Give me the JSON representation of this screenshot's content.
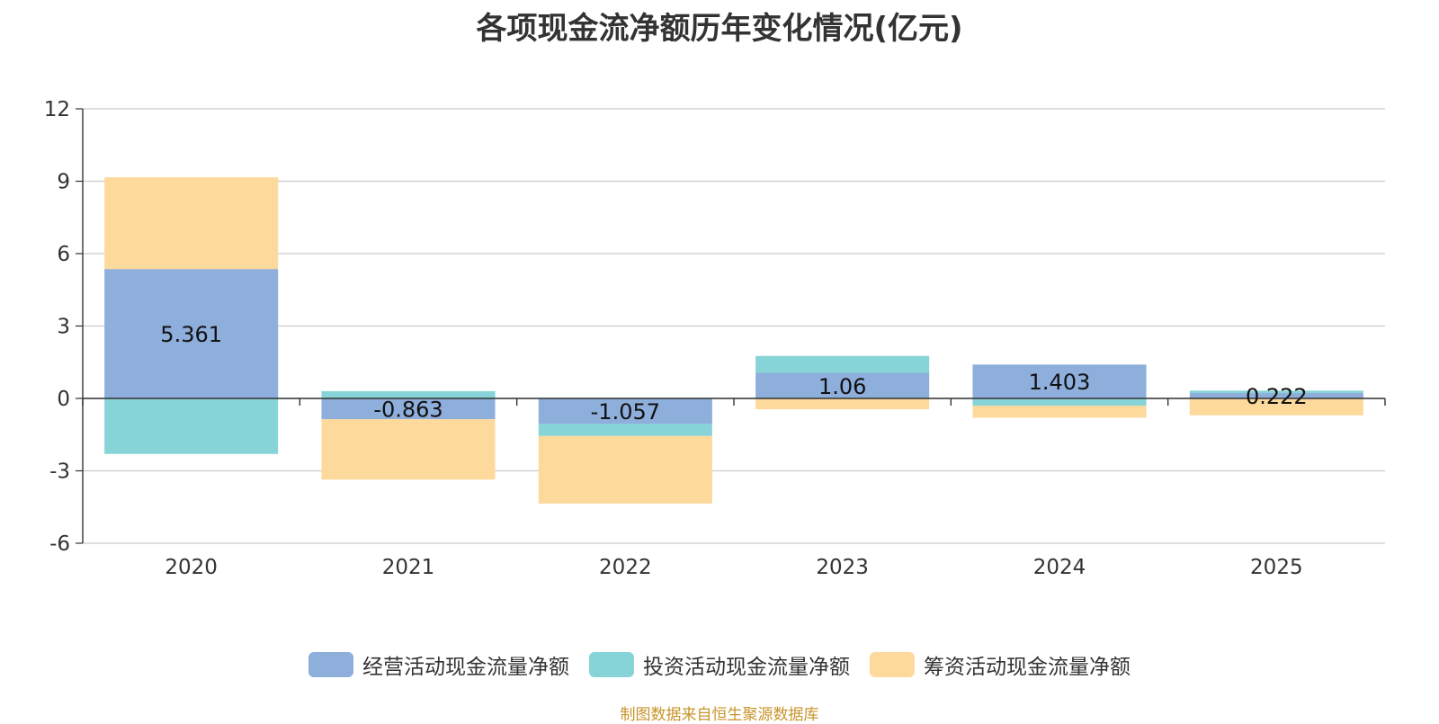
{
  "chart_data": {
    "type": "bar",
    "stacked": true,
    "title": "各项现金流净额历年变化情况(亿元)",
    "categories": [
      "2020",
      "2021",
      "2022",
      "2023",
      "2024",
      "2025"
    ],
    "ylim": [
      -6,
      12
    ],
    "yticks": [
      "12",
      "9",
      "6",
      "3",
      "0",
      "-3",
      "-6"
    ],
    "ytick_values": [
      12,
      9,
      6,
      3,
      0,
      -3,
      -6
    ],
    "grid": true,
    "legend_position": "bottom",
    "series": [
      {
        "name": "经营活动现金流量净额",
        "color": "#8eaedb",
        "values": [
          5.361,
          -0.863,
          -1.057,
          1.06,
          1.403,
          0.222
        ],
        "labels": [
          "5.361",
          "-0.863",
          "-1.057",
          "1.06",
          "1.403",
          "0.222"
        ]
      },
      {
        "name": "投资活动现金流量净额",
        "color": "#86d4d7",
        "values": [
          -2.3,
          0.3,
          -0.5,
          0.7,
          -0.3,
          0.1
        ]
      },
      {
        "name": "筹资活动现金流量净额",
        "color": "#fdd99b",
        "values": [
          3.8,
          -2.5,
          -2.8,
          -0.45,
          -0.5,
          -0.7
        ]
      }
    ]
  },
  "legend": {
    "items": [
      "经营活动现金流量净额",
      "投资活动现金流量净额",
      "筹资活动现金流量净额"
    ],
    "colors": [
      "#8eaedb",
      "#86d4d7",
      "#fdd99b"
    ]
  },
  "footer": {
    "source": "制图数据来自恒生聚源数据库"
  }
}
